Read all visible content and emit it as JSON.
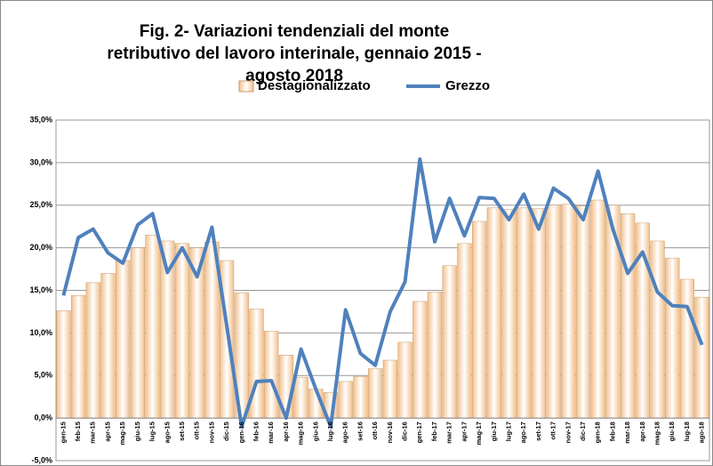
{
  "chart_data": {
    "type": "combo",
    "title": "Fig. 2- Variazioni tendenziali del monte retributivo del lavoro interinale, gennaio 2015 - agosto 2018",
    "categories": [
      "gen-15",
      "feb-15",
      "mar-15",
      "apr-15",
      "mag-15",
      "giu-15",
      "lug-15",
      "ago-15",
      "set-15",
      "ott-15",
      "nov-15",
      "dic-15",
      "gen-16",
      "feb-16",
      "mar-16",
      "apr-16",
      "mag-16",
      "giu-16",
      "lug-16",
      "ago-16",
      "set-16",
      "ott-16",
      "nov-16",
      "dic-16",
      "gen-17",
      "feb-17",
      "mar-17",
      "apr-17",
      "mag-17",
      "giu-17",
      "lug-17",
      "ago-17",
      "set-17",
      "ott-17",
      "nov-17",
      "dic-17",
      "gen-18",
      "feb-18",
      "mar-18",
      "apr-18",
      "mag-18",
      "giu-18",
      "lug-18",
      "ago-18"
    ],
    "series": [
      {
        "name": "Destagionalizzato",
        "type": "bar",
        "color": "#f3c08c",
        "values": [
          12.6,
          14.4,
          15.9,
          17.0,
          18.5,
          20.0,
          21.5,
          20.8,
          20.5,
          20.0,
          20.7,
          18.5,
          14.7,
          12.8,
          10.2,
          7.4,
          4.8,
          3.4,
          3.0,
          4.3,
          4.9,
          5.8,
          6.8,
          8.9,
          13.7,
          14.8,
          17.9,
          20.5,
          23.1,
          24.7,
          24.5,
          24.7,
          24.6,
          25.0,
          25.1,
          24.9,
          25.6,
          25.0,
          24.0,
          22.9,
          20.8,
          18.8,
          16.3,
          14.2
        ]
      },
      {
        "name": "Grezzo",
        "type": "line",
        "color": "#4f81bd",
        "values": [
          14.4,
          21.2,
          22.2,
          19.4,
          18.2,
          22.7,
          24.0,
          17.1,
          20.0,
          16.6,
          22.4,
          10.8,
          -1.0,
          4.3,
          4.4,
          0.0,
          8.1,
          3.4,
          -1.0,
          12.7,
          7.6,
          6.2,
          12.5,
          16.0,
          30.4,
          20.7,
          25.8,
          21.4,
          25.9,
          25.8,
          23.3,
          26.3,
          22.2,
          27.0,
          25.8,
          23.3,
          29.0,
          22.2,
          17.0,
          19.5,
          14.8,
          13.2,
          13.1,
          8.6
        ]
      }
    ],
    "ylim": [
      -5,
      35
    ],
    "yticks": [
      {
        "value": -5,
        "label": "-5,0%"
      },
      {
        "value": 0,
        "label": "0,0%"
      },
      {
        "value": 5,
        "label": "5,0%"
      },
      {
        "value": 10,
        "label": "10,0%"
      },
      {
        "value": 15,
        "label": "15,0%"
      },
      {
        "value": 20,
        "label": "20,0%"
      },
      {
        "value": 25,
        "label": "25,0%"
      },
      {
        "value": 30,
        "label": "30,0%"
      },
      {
        "value": 35,
        "label": "35,0%"
      }
    ],
    "grid": true,
    "legend": "top"
  }
}
